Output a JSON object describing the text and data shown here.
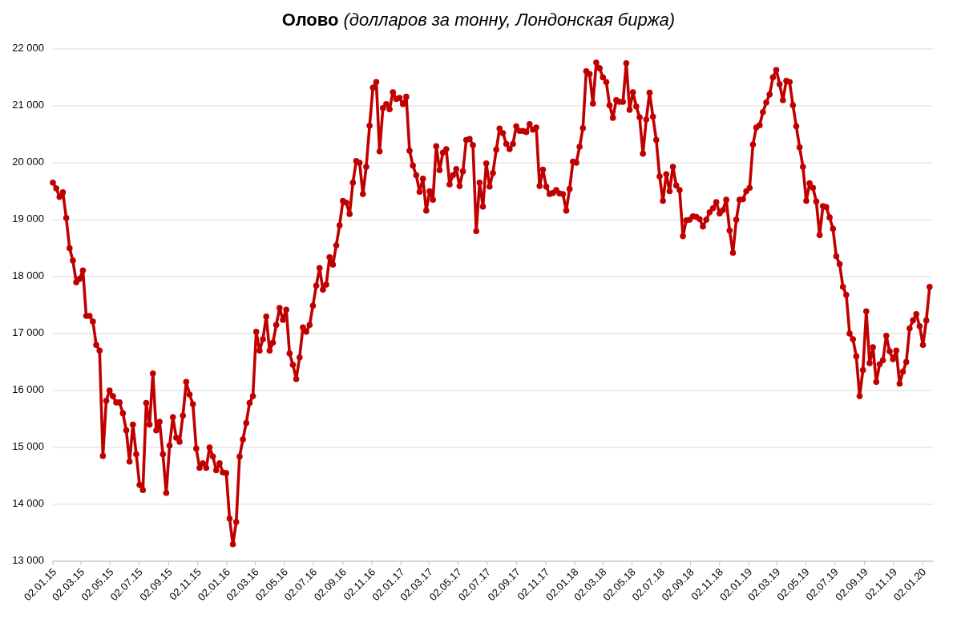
{
  "chart_data": {
    "type": "line",
    "title": "Олово",
    "subtitle": "(долларов за тонну, Лондонская биржа)",
    "x": [
      "2015-01-02",
      "2015-01-09",
      "2015-01-16",
      "2015-01-23",
      "2015-01-30",
      "2015-02-06",
      "2015-02-13",
      "2015-02-20",
      "2015-02-27",
      "2015-03-06",
      "2015-03-13",
      "2015-03-20",
      "2015-03-27",
      "2015-04-03",
      "2015-04-10",
      "2015-04-17",
      "2015-04-24",
      "2015-05-01",
      "2015-05-08",
      "2015-05-15",
      "2015-05-22",
      "2015-05-29",
      "2015-06-05",
      "2015-06-12",
      "2015-06-19",
      "2015-06-26",
      "2015-07-03",
      "2015-07-10",
      "2015-07-17",
      "2015-07-24",
      "2015-07-31",
      "2015-08-07",
      "2015-08-14",
      "2015-08-21",
      "2015-08-28",
      "2015-09-04",
      "2015-09-11",
      "2015-09-18",
      "2015-09-25",
      "2015-10-02",
      "2015-10-09",
      "2015-10-16",
      "2015-10-23",
      "2015-10-30",
      "2015-11-06",
      "2015-11-13",
      "2015-11-20",
      "2015-11-27",
      "2015-12-04",
      "2015-12-11",
      "2015-12-18",
      "2015-12-25",
      "2016-01-01",
      "2016-01-08",
      "2016-01-15",
      "2016-01-22",
      "2016-01-29",
      "2016-02-05",
      "2016-02-12",
      "2016-02-19",
      "2016-02-26",
      "2016-03-04",
      "2016-03-11",
      "2016-03-18",
      "2016-03-25",
      "2016-04-01",
      "2016-04-08",
      "2016-04-15",
      "2016-04-22",
      "2016-04-29",
      "2016-05-06",
      "2016-05-13",
      "2016-05-20",
      "2016-05-27",
      "2016-06-03",
      "2016-06-10",
      "2016-06-17",
      "2016-06-24",
      "2016-07-01",
      "2016-07-08",
      "2016-07-15",
      "2016-07-22",
      "2016-07-29",
      "2016-08-05",
      "2016-08-12",
      "2016-08-19",
      "2016-08-26",
      "2016-09-02",
      "2016-09-09",
      "2016-09-16",
      "2016-09-23",
      "2016-09-30",
      "2016-10-07",
      "2016-10-14",
      "2016-10-21",
      "2016-10-28",
      "2016-11-04",
      "2016-11-11",
      "2016-11-18",
      "2016-11-25",
      "2016-12-02",
      "2016-12-09",
      "2016-12-16",
      "2016-12-23",
      "2016-12-30",
      "2017-01-06",
      "2017-01-13",
      "2017-01-20",
      "2017-01-27",
      "2017-02-03",
      "2017-02-10",
      "2017-02-17",
      "2017-02-24",
      "2017-03-03",
      "2017-03-10",
      "2017-03-17",
      "2017-03-24",
      "2017-03-31",
      "2017-04-07",
      "2017-04-14",
      "2017-04-21",
      "2017-04-28",
      "2017-05-05",
      "2017-05-12",
      "2017-05-19",
      "2017-05-26",
      "2017-06-02",
      "2017-06-09",
      "2017-06-16",
      "2017-06-23",
      "2017-06-30",
      "2017-07-07",
      "2017-07-14",
      "2017-07-21",
      "2017-07-28",
      "2017-08-04",
      "2017-08-11",
      "2017-08-18",
      "2017-08-25",
      "2017-09-01",
      "2017-09-08",
      "2017-09-15",
      "2017-09-22",
      "2017-09-29",
      "2017-10-06",
      "2017-10-13",
      "2017-10-20",
      "2017-10-27",
      "2017-11-03",
      "2017-11-10",
      "2017-11-17",
      "2017-11-24",
      "2017-12-01",
      "2017-12-08",
      "2017-12-15",
      "2017-12-22",
      "2017-12-29",
      "2018-01-05",
      "2018-01-12",
      "2018-01-19",
      "2018-01-26",
      "2018-02-02",
      "2018-02-09",
      "2018-02-16",
      "2018-02-23",
      "2018-03-02",
      "2018-03-09",
      "2018-03-16",
      "2018-03-23",
      "2018-03-30",
      "2018-04-06",
      "2018-04-13",
      "2018-04-20",
      "2018-04-27",
      "2018-05-04",
      "2018-05-11",
      "2018-05-18",
      "2018-05-25",
      "2018-06-01",
      "2018-06-08",
      "2018-06-15",
      "2018-06-22",
      "2018-06-29",
      "2018-07-06",
      "2018-07-13",
      "2018-07-20",
      "2018-07-27",
      "2018-08-03",
      "2018-08-10",
      "2018-08-17",
      "2018-08-24",
      "2018-08-31",
      "2018-09-07",
      "2018-09-14",
      "2018-09-21",
      "2018-09-28",
      "2018-10-05",
      "2018-10-12",
      "2018-10-19",
      "2018-10-26",
      "2018-11-02",
      "2018-11-09",
      "2018-11-16",
      "2018-11-23",
      "2018-11-30",
      "2018-12-07",
      "2018-12-14",
      "2018-12-21",
      "2018-12-28",
      "2019-01-04",
      "2019-01-11",
      "2019-01-18",
      "2019-01-25",
      "2019-02-01",
      "2019-02-08",
      "2019-02-15",
      "2019-02-22",
      "2019-03-01",
      "2019-03-08",
      "2019-03-15",
      "2019-03-22",
      "2019-03-29",
      "2019-04-05",
      "2019-04-12",
      "2019-04-19",
      "2019-04-26",
      "2019-05-03",
      "2019-05-10",
      "2019-05-17",
      "2019-05-24",
      "2019-05-31",
      "2019-06-07",
      "2019-06-14",
      "2019-06-21",
      "2019-06-28",
      "2019-07-05",
      "2019-07-12",
      "2019-07-19",
      "2019-07-26",
      "2019-08-02",
      "2019-08-09",
      "2019-08-16",
      "2019-08-23",
      "2019-08-30",
      "2019-09-06",
      "2019-09-13",
      "2019-09-20",
      "2019-09-27",
      "2019-10-04",
      "2019-10-11",
      "2019-10-18",
      "2019-10-25",
      "2019-11-01",
      "2019-11-08",
      "2019-11-15",
      "2019-11-22",
      "2019-11-29",
      "2019-12-06",
      "2019-12-13",
      "2019-12-20",
      "2019-12-27",
      "2020-01-03",
      "2020-01-10",
      "2020-01-17"
    ],
    "series": [
      {
        "color": "#c00000",
        "values": [
          19650,
          19550,
          19400,
          19480,
          19030,
          18500,
          18280,
          17900,
          17960,
          18110,
          17310,
          17310,
          17210,
          16800,
          16700,
          14850,
          15820,
          16000,
          15900,
          15790,
          15790,
          15600,
          15300,
          14750,
          15400,
          14880,
          14340,
          14250,
          15780,
          15400,
          16300,
          15300,
          15450,
          14880,
          14200,
          15030,
          15530,
          15170,
          15100,
          15560,
          16150,
          15930,
          15760,
          14980,
          14640,
          14720,
          14640,
          15000,
          14840,
          14600,
          14720,
          14560,
          14550,
          13750,
          13300,
          13690,
          14840,
          15140,
          15430,
          15780,
          15900,
          17030,
          16700,
          16900,
          17300,
          16700,
          16840,
          17150,
          17450,
          17240,
          17420,
          16650,
          16450,
          16200,
          16580,
          17110,
          17030,
          17150,
          17490,
          17840,
          18150,
          17770,
          17860,
          18340,
          18210,
          18550,
          18900,
          19330,
          19300,
          19100,
          19650,
          20030,
          20000,
          19450,
          19930,
          20650,
          21320,
          21420,
          20200,
          20960,
          21030,
          20940,
          21240,
          21120,
          21140,
          21030,
          21160,
          20210,
          19950,
          19780,
          19490,
          19720,
          19160,
          19500,
          19350,
          20290,
          19870,
          20180,
          20240,
          19620,
          19780,
          19890,
          19590,
          19850,
          20400,
          20420,
          20310,
          18800,
          19650,
          19230,
          19990,
          19580,
          19820,
          20230,
          20600,
          20520,
          20330,
          20240,
          20330,
          20640,
          20560,
          20560,
          20540,
          20680,
          20580,
          20620,
          19590,
          19880,
          19580,
          19450,
          19470,
          19520,
          19460,
          19450,
          19160,
          19540,
          20020,
          20000,
          20280,
          20610,
          21610,
          21560,
          21040,
          21760,
          21660,
          21500,
          21420,
          21010,
          20790,
          21100,
          21070,
          21070,
          21750,
          20930,
          21240,
          20990,
          20800,
          20160,
          20760,
          21230,
          20810,
          20400,
          19760,
          19330,
          19800,
          19500,
          19930,
          19600,
          19520,
          18710,
          18990,
          19000,
          19060,
          19050,
          19010,
          18880,
          19000,
          19130,
          19200,
          19310,
          19110,
          19170,
          19350,
          18810,
          18420,
          19000,
          19350,
          19360,
          19500,
          19560,
          20320,
          20620,
          20660,
          20890,
          21060,
          21200,
          21500,
          21630,
          21380,
          21100,
          21440,
          21420,
          21010,
          20640,
          20270,
          19930,
          19330,
          19640,
          19560,
          19320,
          18730,
          19240,
          19220,
          19040,
          18840,
          18360,
          18220,
          17820,
          17680,
          17000,
          16900,
          16600,
          15900,
          16360,
          17390,
          16480,
          16760,
          16150,
          16460,
          16530,
          16960,
          16690,
          16550,
          16700,
          16120,
          16330,
          16500,
          17090,
          17230,
          17340,
          17130,
          16800,
          17230,
          17820
        ]
      }
    ],
    "xlim": [
      "2015-01-02",
      "2020-01-24"
    ],
    "xticks": [
      {
        "value": "2015-01-02",
        "label": "02.01.15"
      },
      {
        "value": "2015-03-02",
        "label": "02.03.15"
      },
      {
        "value": "2015-05-02",
        "label": "02.05.15"
      },
      {
        "value": "2015-07-02",
        "label": "02.07.15"
      },
      {
        "value": "2015-09-02",
        "label": "02.09.15"
      },
      {
        "value": "2015-11-02",
        "label": "02.11.15"
      },
      {
        "value": "2016-01-02",
        "label": "02.01.16"
      },
      {
        "value": "2016-03-02",
        "label": "02.03.16"
      },
      {
        "value": "2016-05-02",
        "label": "02.05.16"
      },
      {
        "value": "2016-07-02",
        "label": "02.07.16"
      },
      {
        "value": "2016-09-02",
        "label": "02.09.16"
      },
      {
        "value": "2016-11-02",
        "label": "02.11.16"
      },
      {
        "value": "2017-01-02",
        "label": "02.01.17"
      },
      {
        "value": "2017-03-02",
        "label": "02.03.17"
      },
      {
        "value": "2017-05-02",
        "label": "02.05.17"
      },
      {
        "value": "2017-07-02",
        "label": "02.07.17"
      },
      {
        "value": "2017-09-02",
        "label": "02.09.17"
      },
      {
        "value": "2017-11-02",
        "label": "02.11.17"
      },
      {
        "value": "2018-01-02",
        "label": "02.01.18"
      },
      {
        "value": "2018-03-02",
        "label": "02.03.18"
      },
      {
        "value": "2018-05-02",
        "label": "02.05.18"
      },
      {
        "value": "2018-07-02",
        "label": "02.07.18"
      },
      {
        "value": "2018-09-02",
        "label": "02.09.18"
      },
      {
        "value": "2018-11-02",
        "label": "02.11.18"
      },
      {
        "value": "2019-01-02",
        "label": "02.01.19"
      },
      {
        "value": "2019-03-02",
        "label": "02.03.19"
      },
      {
        "value": "2019-05-02",
        "label": "02.05.19"
      },
      {
        "value": "2019-07-02",
        "label": "02.07.19"
      },
      {
        "value": "2019-09-02",
        "label": "02.09.19"
      },
      {
        "value": "2019-11-02",
        "label": "02.11.19"
      },
      {
        "value": "2020-01-02",
        "label": "02.01.20"
      }
    ],
    "ylim": [
      13000,
      22000
    ],
    "yticks": [
      {
        "value": 13000,
        "label": "13 000"
      },
      {
        "value": 14000,
        "label": "14 000"
      },
      {
        "value": 15000,
        "label": "15 000"
      },
      {
        "value": 16000,
        "label": "16 000"
      },
      {
        "value": 17000,
        "label": "17 000"
      },
      {
        "value": 18000,
        "label": "18 000"
      },
      {
        "value": 19000,
        "label": "19 000"
      },
      {
        "value": 20000,
        "label": "20 000"
      },
      {
        "value": 21000,
        "label": "21 000"
      },
      {
        "value": 22000,
        "label": "22 000"
      }
    ],
    "grid": "y",
    "marker": "circle",
    "line_style": "solid"
  }
}
